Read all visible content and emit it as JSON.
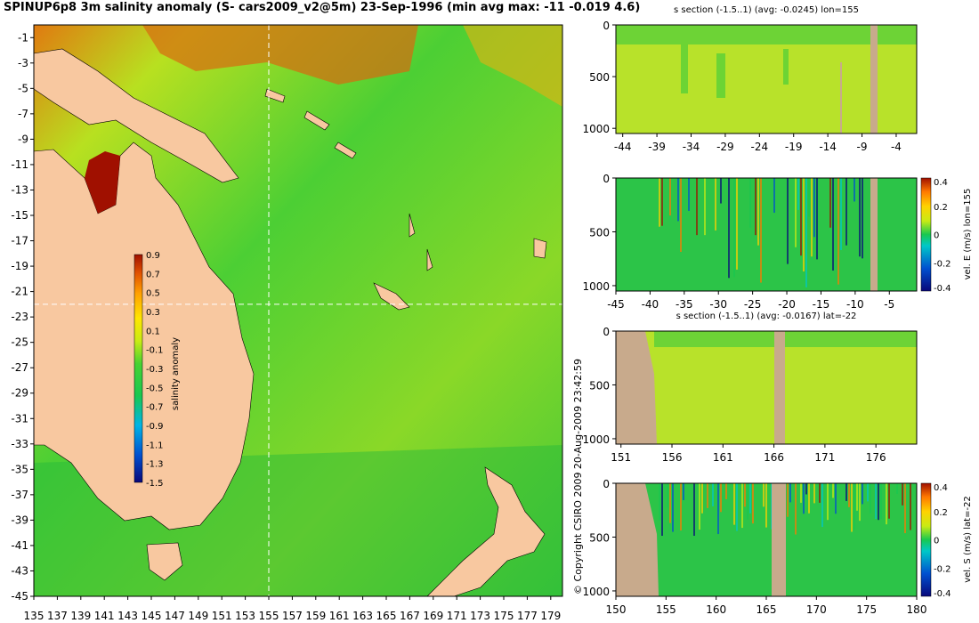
{
  "header": {
    "title": "SPINUP6p8 3m salinity anomaly (S- cars2009_v2@5m) 23-Sep-1996 (min avg max: -11 -0.019 4.6)",
    "copyright": "© Copyright CSIRO 2009  20-Aug-2009 23:42:59"
  },
  "colors": {
    "land": "#f8c8a0",
    "section_land": "#c8aa8c",
    "scale": [
      "#08087a",
      "#0050d0",
      "#00b4e6",
      "#18c850",
      "#46d232",
      "#c8eb14",
      "#ffe600",
      "#ffa000",
      "#e05000",
      "#a01000"
    ]
  },
  "chart_data": [
    {
      "type": "heatmap",
      "name": "map",
      "xticks": [
        "135",
        "137",
        "139",
        "141",
        "143",
        "145",
        "147",
        "149",
        "151",
        "153",
        "155",
        "157",
        "159",
        "161",
        "163",
        "165",
        "167",
        "169",
        "171",
        "173",
        "175",
        "177",
        "179"
      ],
      "yticks": [
        "-1",
        "-3",
        "-5",
        "-7",
        "-9",
        "-11",
        "-13",
        "-15",
        "-17",
        "-19",
        "-21",
        "-23",
        "-25",
        "-27",
        "-29",
        "-31",
        "-33",
        "-35",
        "-37",
        "-39",
        "-41",
        "-43",
        "-45"
      ],
      "xlim": [
        135,
        180
      ],
      "ylim": [
        -45,
        0
      ],
      "crosshair": {
        "lon": 155,
        "lat": -22
      },
      "colorbar": {
        "label": "salinity anomaly",
        "ticks": [
          "0.9",
          "0.7",
          "0.5",
          "0.3",
          "0.1",
          "-0.1",
          "-0.3",
          "-0.5",
          "-0.7",
          "-0.9",
          "-1.1",
          "-1.3",
          "-1.5"
        ],
        "range": [
          -1.5,
          0.9
        ]
      }
    },
    {
      "type": "heatmap",
      "name": "s-section-lon155",
      "title": "s section (-1.5..1) (avg: -0.0245) lon=155",
      "xticks": [
        "-44",
        "-39",
        "-34",
        "-29",
        "-24",
        "-19",
        "-14",
        "-9",
        "-4"
      ],
      "xlim": [
        -45,
        -1
      ],
      "yticks": [
        "0",
        "500",
        "1000"
      ],
      "ylim": [
        0,
        1050
      ]
    },
    {
      "type": "heatmap",
      "name": "vel-e-lon155",
      "xticks": [
        "-45",
        "-40",
        "-35",
        "-30",
        "-25",
        "-20",
        "-15",
        "-10",
        "-5"
      ],
      "xlim": [
        -45,
        -1
      ],
      "yticks": [
        "0",
        "500",
        "1000"
      ],
      "ylim": [
        0,
        1050
      ],
      "colorbar": {
        "label": "vel. E (m/s) lon=155",
        "ticks": [
          "0.4",
          "0.2",
          "0",
          "-0.2",
          "-0.4"
        ],
        "range": [
          -0.4,
          0.4
        ]
      }
    },
    {
      "type": "heatmap",
      "name": "s-section-lat-22",
      "title": "s section (-1.5..1) (avg: -0.0167) lat=-22",
      "xticks": [
        "151",
        "156",
        "161",
        "166",
        "171",
        "176"
      ],
      "xlim": [
        150.5,
        180
      ],
      "yticks": [
        "0",
        "500",
        "1000"
      ],
      "ylim": [
        0,
        1050
      ]
    },
    {
      "type": "heatmap",
      "name": "vel-s-lat-22",
      "xticks": [
        "150",
        "155",
        "160",
        "165",
        "170",
        "175",
        "180"
      ],
      "xlim": [
        150,
        180
      ],
      "yticks": [
        "0",
        "500",
        "1000"
      ],
      "ylim": [
        0,
        1050
      ],
      "colorbar": {
        "label": "vel. S (m/s) lat=-22",
        "ticks": [
          "0.4",
          "0.2",
          "0",
          "-0.2",
          "-0.4"
        ],
        "range": [
          -0.4,
          0.4
        ]
      }
    }
  ]
}
